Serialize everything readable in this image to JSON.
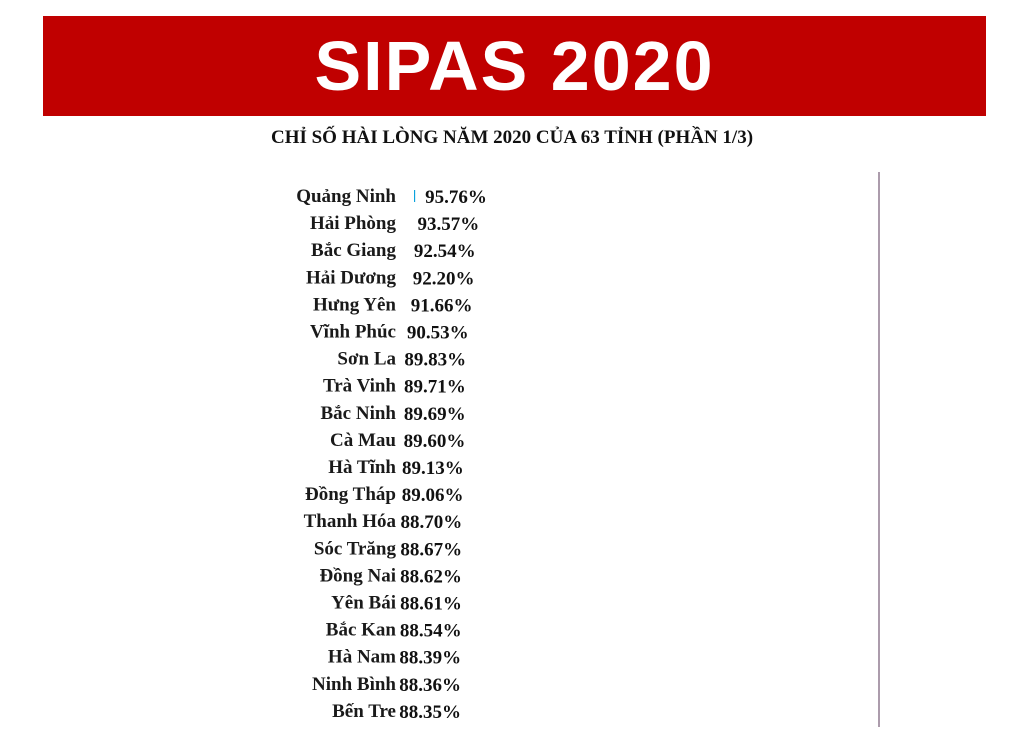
{
  "header": {
    "title": "SIPAS 2020",
    "banner_color": "#c00000"
  },
  "chart_data": {
    "type": "bar",
    "orientation": "horizontal",
    "title": "CHỈ SỐ HÀI LÒNG NĂM 2020 CỦA 63 TỈNH (PHẦN 1/3)",
    "xlabel": "",
    "ylabel": "",
    "value_suffix": "%",
    "xlim": [
      0,
      100
    ],
    "grid": false,
    "legend": "none",
    "highlight_color": "#0aa2dd",
    "default_color": "#0db14b",
    "highlight_threshold": 90,
    "categories": [
      "Quảng Ninh",
      "Hải Phòng",
      "Bắc Giang",
      "Hải Dương",
      "Hưng Yên",
      "Vĩnh Phúc",
      "Sơn La",
      "Trà Vinh",
      "Bắc Ninh",
      "Cà Mau",
      "Hà Tĩnh",
      "Đồng Tháp",
      "Thanh Hóa",
      "Sóc Trăng",
      "Đồng Nai",
      "Yên Bái",
      "Bắc Kan",
      "Hà Nam",
      "Ninh Bình",
      "Bến Tre"
    ],
    "values": [
      95.76,
      93.57,
      92.54,
      92.2,
      91.66,
      90.53,
      89.83,
      89.71,
      89.69,
      89.6,
      89.13,
      89.06,
      88.7,
      88.67,
      88.62,
      88.61,
      88.54,
      88.39,
      88.36,
      88.35
    ],
    "value_labels": [
      "95.76%",
      "93.57%",
      "92.54%",
      "92.20%",
      "91.66%",
      "90.53%",
      "89.83%",
      "89.71%",
      "89.69%",
      "89.60%",
      "89.13%",
      "89.06%",
      "88.70%",
      "88.67%",
      "88.62%",
      "88.61%",
      "88.54%",
      "88.39%",
      "88.36%",
      "88.35%"
    ]
  }
}
